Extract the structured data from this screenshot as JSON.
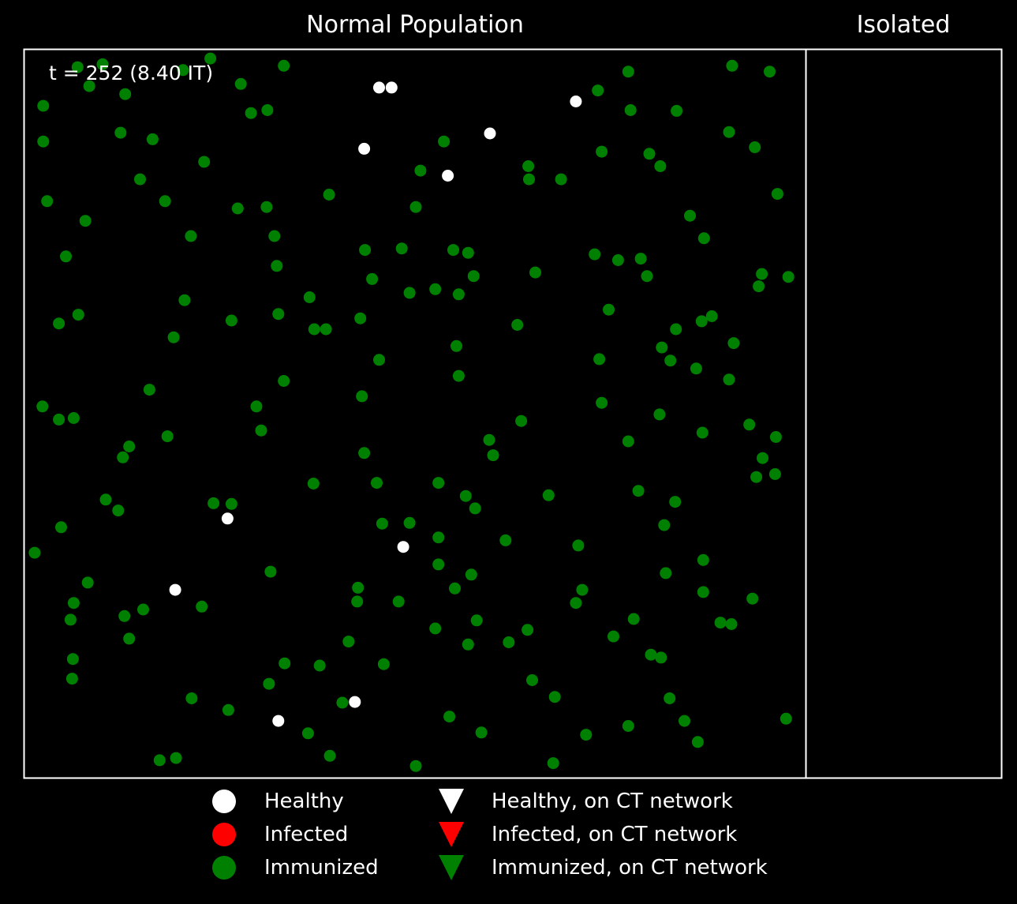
{
  "panels": {
    "left_title": "Normal Population",
    "right_title": "Isolated"
  },
  "time_label": "t = 252  (8.40 IT)",
  "colors": {
    "background": "#000000",
    "healthy": "#ffffff",
    "infected": "#ff0000",
    "immunized": "#008000",
    "frame": "#ffffff"
  },
  "legend": [
    {
      "label": "Healthy",
      "marker": "circle",
      "color_key": "healthy"
    },
    {
      "label": "Infected",
      "marker": "circle",
      "color_key": "infected"
    },
    {
      "label": "Immunized",
      "marker": "circle",
      "color_key": "immunized"
    },
    {
      "label": "Healthy, on CT network",
      "marker": "triangle-down",
      "color_key": "healthy"
    },
    {
      "label": "Infected, on CT network",
      "marker": "triangle-down",
      "color_key": "infected"
    },
    {
      "label": "Immunized, on CT network",
      "marker": "triangle-down",
      "color_key": "immunized"
    }
  ],
  "chart_data": {
    "type": "scatter",
    "title": "Normal Population",
    "xlim": [
      0,
      1
    ],
    "ylim": [
      0,
      1
    ],
    "grid": false,
    "legend_placement": "bottom",
    "series": [
      {
        "name": "Healthy",
        "color": "#ffffff",
        "points": [
          [
            0.454,
            0.948
          ],
          [
            0.47,
            0.948
          ],
          [
            0.706,
            0.929
          ],
          [
            0.596,
            0.885
          ],
          [
            0.435,
            0.864
          ],
          [
            0.542,
            0.827
          ],
          [
            0.26,
            0.356
          ],
          [
            0.485,
            0.317
          ],
          [
            0.193,
            0.258
          ],
          [
            0.423,
            0.104
          ],
          [
            0.325,
            0.078
          ]
        ]
      },
      {
        "name": "Infected",
        "color": "#ff0000",
        "points": []
      },
      {
        "name": "Immunized",
        "color": "#008000",
        "points": [
          [
            0.068,
            0.976
          ],
          [
            0.238,
            0.988
          ],
          [
            0.1,
            0.98
          ],
          [
            0.203,
            0.972
          ],
          [
            0.332,
            0.978
          ],
          [
            0.906,
            0.978
          ],
          [
            0.954,
            0.97
          ],
          [
            0.083,
            0.95
          ],
          [
            0.277,
            0.953
          ],
          [
            0.129,
            0.939
          ],
          [
            0.773,
            0.97
          ],
          [
            0.734,
            0.944
          ],
          [
            0.024,
            0.923
          ],
          [
            0.29,
            0.913
          ],
          [
            0.311,
            0.917
          ],
          [
            0.776,
            0.917
          ],
          [
            0.835,
            0.916
          ],
          [
            0.123,
            0.886
          ],
          [
            0.164,
            0.877
          ],
          [
            0.024,
            0.874
          ],
          [
            0.537,
            0.874
          ],
          [
            0.902,
            0.887
          ],
          [
            0.935,
            0.866
          ],
          [
            0.739,
            0.86
          ],
          [
            0.8,
            0.857
          ],
          [
            0.23,
            0.846
          ],
          [
            0.507,
            0.834
          ],
          [
            0.645,
            0.84
          ],
          [
            0.646,
            0.822
          ],
          [
            0.687,
            0.822
          ],
          [
            0.814,
            0.84
          ],
          [
            0.148,
            0.822
          ],
          [
            0.39,
            0.801
          ],
          [
            0.964,
            0.802
          ],
          [
            0.029,
            0.792
          ],
          [
            0.18,
            0.792
          ],
          [
            0.501,
            0.784
          ],
          [
            0.31,
            0.784
          ],
          [
            0.273,
            0.782
          ],
          [
            0.078,
            0.765
          ],
          [
            0.852,
            0.772
          ],
          [
            0.213,
            0.744
          ],
          [
            0.32,
            0.744
          ],
          [
            0.87,
            0.741
          ],
          [
            0.053,
            0.716
          ],
          [
            0.436,
            0.725
          ],
          [
            0.483,
            0.727
          ],
          [
            0.549,
            0.725
          ],
          [
            0.568,
            0.721
          ],
          [
            0.73,
            0.719
          ],
          [
            0.76,
            0.711
          ],
          [
            0.789,
            0.713
          ],
          [
            0.323,
            0.703
          ],
          [
            0.654,
            0.694
          ],
          [
            0.797,
            0.689
          ],
          [
            0.944,
            0.692
          ],
          [
            0.575,
            0.689
          ],
          [
            0.445,
            0.685
          ],
          [
            0.978,
            0.688
          ],
          [
            0.94,
            0.675
          ],
          [
            0.205,
            0.656
          ],
          [
            0.365,
            0.66
          ],
          [
            0.493,
            0.666
          ],
          [
            0.526,
            0.671
          ],
          [
            0.556,
            0.664
          ],
          [
            0.748,
            0.643
          ],
          [
            0.044,
            0.624
          ],
          [
            0.069,
            0.636
          ],
          [
            0.265,
            0.628
          ],
          [
            0.325,
            0.637
          ],
          [
            0.371,
            0.616
          ],
          [
            0.386,
            0.616
          ],
          [
            0.43,
            0.631
          ],
          [
            0.631,
            0.622
          ],
          [
            0.834,
            0.616
          ],
          [
            0.88,
            0.634
          ],
          [
            0.867,
            0.627
          ],
          [
            0.191,
            0.605
          ],
          [
            0.553,
            0.593
          ],
          [
            0.816,
            0.591
          ],
          [
            0.908,
            0.597
          ],
          [
            0.454,
            0.574
          ],
          [
            0.736,
            0.575
          ],
          [
            0.556,
            0.552
          ],
          [
            0.827,
            0.573
          ],
          [
            0.86,
            0.562
          ],
          [
            0.902,
            0.547
          ],
          [
            0.16,
            0.533
          ],
          [
            0.332,
            0.545
          ],
          [
            0.432,
            0.524
          ],
          [
            0.739,
            0.515
          ],
          [
            0.023,
            0.51
          ],
          [
            0.297,
            0.51
          ],
          [
            0.813,
            0.499
          ],
          [
            0.044,
            0.492
          ],
          [
            0.063,
            0.494
          ],
          [
            0.303,
            0.477
          ],
          [
            0.636,
            0.49
          ],
          [
            0.868,
            0.474
          ],
          [
            0.928,
            0.485
          ],
          [
            0.183,
            0.469
          ],
          [
            0.595,
            0.464
          ],
          [
            0.962,
            0.468
          ],
          [
            0.134,
            0.455
          ],
          [
            0.6,
            0.443
          ],
          [
            0.773,
            0.462
          ],
          [
            0.945,
            0.439
          ],
          [
            0.126,
            0.44
          ],
          [
            0.435,
            0.446
          ],
          [
            0.937,
            0.413
          ],
          [
            0.961,
            0.417
          ],
          [
            0.37,
            0.404
          ],
          [
            0.451,
            0.405
          ],
          [
            0.53,
            0.405
          ],
          [
            0.565,
            0.387
          ],
          [
            0.671,
            0.388
          ],
          [
            0.786,
            0.394
          ],
          [
            0.833,
            0.379
          ],
          [
            0.104,
            0.382
          ],
          [
            0.12,
            0.367
          ],
          [
            0.242,
            0.377
          ],
          [
            0.265,
            0.376
          ],
          [
            0.577,
            0.37
          ],
          [
            0.047,
            0.344
          ],
          [
            0.458,
            0.349
          ],
          [
            0.493,
            0.35
          ],
          [
            0.53,
            0.33
          ],
          [
            0.616,
            0.326
          ],
          [
            0.709,
            0.319
          ],
          [
            0.819,
            0.347
          ],
          [
            0.013,
            0.309
          ],
          [
            0.53,
            0.293
          ],
          [
            0.315,
            0.283
          ],
          [
            0.572,
            0.279
          ],
          [
            0.821,
            0.281
          ],
          [
            0.869,
            0.299
          ],
          [
            0.081,
            0.268
          ],
          [
            0.427,
            0.261
          ],
          [
            0.551,
            0.26
          ],
          [
            0.714,
            0.258
          ],
          [
            0.869,
            0.255
          ],
          [
            0.063,
            0.24
          ],
          [
            0.426,
            0.242
          ],
          [
            0.479,
            0.242
          ],
          [
            0.706,
            0.24
          ],
          [
            0.932,
            0.246
          ],
          [
            0.152,
            0.231
          ],
          [
            0.227,
            0.235
          ],
          [
            0.059,
            0.217
          ],
          [
            0.128,
            0.222
          ],
          [
            0.579,
            0.216
          ],
          [
            0.78,
            0.218
          ],
          [
            0.891,
            0.213
          ],
          [
            0.905,
            0.211
          ],
          [
            0.526,
            0.205
          ],
          [
            0.644,
            0.203
          ],
          [
            0.134,
            0.191
          ],
          [
            0.415,
            0.187
          ],
          [
            0.568,
            0.183
          ],
          [
            0.62,
            0.186
          ],
          [
            0.754,
            0.194
          ],
          [
            0.062,
            0.163
          ],
          [
            0.802,
            0.169
          ],
          [
            0.815,
            0.165
          ],
          [
            0.333,
            0.157
          ],
          [
            0.378,
            0.154
          ],
          [
            0.46,
            0.156
          ],
          [
            0.061,
            0.136
          ],
          [
            0.313,
            0.129
          ],
          [
            0.65,
            0.134
          ],
          [
            0.214,
            0.109
          ],
          [
            0.407,
            0.103
          ],
          [
            0.679,
            0.111
          ],
          [
            0.826,
            0.109
          ],
          [
            0.261,
            0.093
          ],
          [
            0.544,
            0.084
          ],
          [
            0.845,
            0.078
          ],
          [
            0.975,
            0.081
          ],
          [
            0.363,
            0.061
          ],
          [
            0.585,
            0.062
          ],
          [
            0.719,
            0.059
          ],
          [
            0.773,
            0.071
          ],
          [
            0.862,
            0.049
          ],
          [
            0.173,
            0.024
          ],
          [
            0.194,
            0.027
          ],
          [
            0.391,
            0.03
          ],
          [
            0.501,
            0.016
          ],
          [
            0.677,
            0.02
          ]
        ]
      }
    ],
    "isolated_panel": {
      "title": "Isolated",
      "points": []
    }
  }
}
